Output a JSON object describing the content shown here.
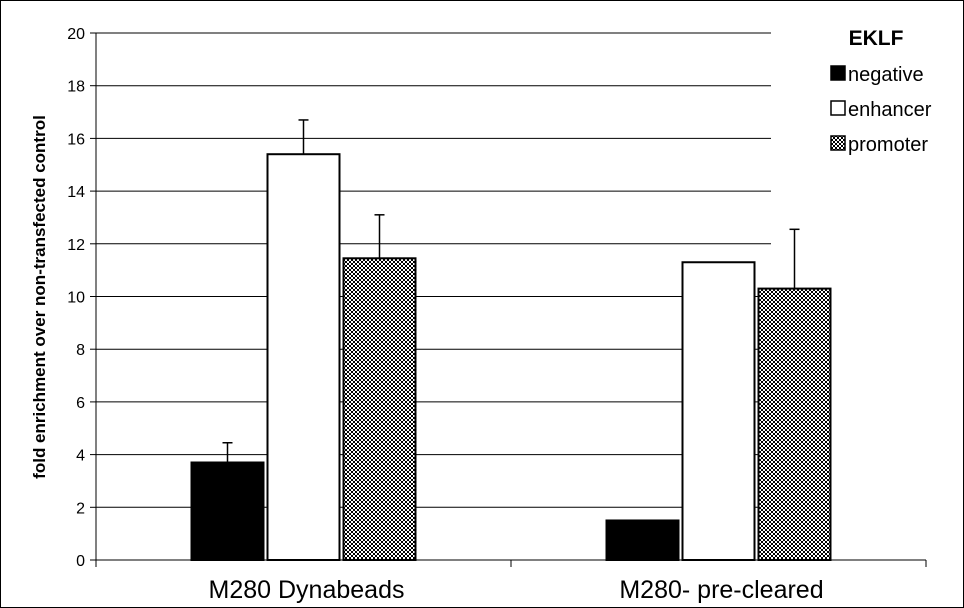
{
  "chart_data": {
    "type": "bar",
    "title": "",
    "xlabel": "",
    "ylabel": "fold enrichment over non-transfected control",
    "ylim": [
      0,
      20
    ],
    "yticks": [
      0,
      2,
      4,
      6,
      8,
      10,
      12,
      14,
      16,
      18,
      20
    ],
    "grid": true,
    "categories": [
      "M280 Dynabeads",
      "M280- pre-cleared"
    ],
    "legend": {
      "title": "EKLF",
      "placement": "top-right"
    },
    "series": [
      {
        "name": "negative",
        "values": [
          3.7,
          1.5
        ],
        "errors": [
          0.75,
          0.05
        ],
        "fill": "#000000",
        "pattern": "solid"
      },
      {
        "name": "enhancer",
        "values": [
          15.4,
          11.3
        ],
        "errors": [
          1.3,
          0.0
        ],
        "fill": "#ffffff",
        "pattern": "solid"
      },
      {
        "name": "promoter",
        "values": [
          11.45,
          10.3
        ],
        "errors": [
          1.65,
          2.25
        ],
        "fill": "#000000",
        "pattern": "checker"
      }
    ]
  }
}
